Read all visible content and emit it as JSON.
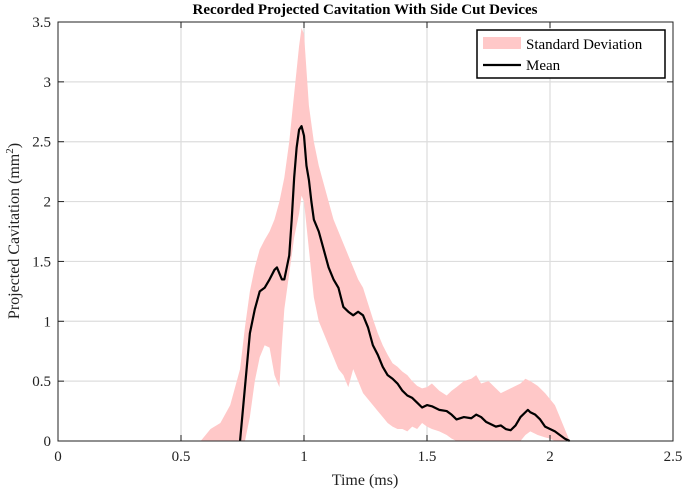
{
  "chart_data": {
    "type": "area",
    "title": "Recorded Projected Cavitation With Side Cut Devices",
    "xlabel": "Time (ms)",
    "ylabel_base": "Projected Cavitation (mm",
    "ylabel_sup": "2",
    "ylabel_end": ")",
    "xlim": [
      0,
      2.5
    ],
    "ylim": [
      0,
      3.5
    ],
    "xticks": [
      0,
      0.5,
      1,
      1.5,
      2,
      2.5
    ],
    "xtick_labels": [
      "0",
      "0.5",
      "1",
      "1.5",
      "2",
      "2.5"
    ],
    "yticks": [
      0,
      0.5,
      1,
      1.5,
      2,
      2.5,
      3,
      3.5
    ],
    "ytick_labels": [
      "0",
      "0.5",
      "1",
      "1.5",
      "2",
      "2.5",
      "3",
      "3.5"
    ],
    "grid": true,
    "legend_position": "top-right",
    "colors": {
      "band": "#ffc8c8",
      "mean": "#000000",
      "grid": "#dddddd",
      "axis": "#222222"
    },
    "series": [
      {
        "name": "Standard Deviation",
        "kind": "band",
        "x": [
          0.58,
          0.62,
          0.66,
          0.7,
          0.74,
          0.76,
          0.78,
          0.8,
          0.82,
          0.84,
          0.86,
          0.88,
          0.9,
          0.91,
          0.92,
          0.94,
          0.96,
          0.98,
          0.99,
          1.0,
          1.02,
          1.04,
          1.06,
          1.08,
          1.1,
          1.12,
          1.14,
          1.16,
          1.18,
          1.2,
          1.22,
          1.24,
          1.26,
          1.28,
          1.3,
          1.32,
          1.34,
          1.36,
          1.38,
          1.4,
          1.42,
          1.44,
          1.46,
          1.48,
          1.5,
          1.52,
          1.55,
          1.58,
          1.6,
          1.62,
          1.65,
          1.68,
          1.7,
          1.72,
          1.75,
          1.78,
          1.8,
          1.82,
          1.85,
          1.88,
          1.9,
          1.92,
          1.95,
          1.98,
          2.0,
          2.02,
          2.04,
          2.06,
          2.08
        ],
        "upper": [
          0.0,
          0.1,
          0.15,
          0.3,
          0.6,
          0.95,
          1.25,
          1.45,
          1.6,
          1.68,
          1.75,
          1.85,
          2.0,
          2.1,
          2.2,
          2.5,
          2.9,
          3.3,
          3.45,
          3.4,
          2.8,
          2.5,
          2.3,
          2.15,
          2.0,
          1.85,
          1.75,
          1.65,
          1.55,
          1.45,
          1.35,
          1.28,
          1.15,
          1.02,
          0.9,
          0.8,
          0.72,
          0.65,
          0.62,
          0.58,
          0.55,
          0.5,
          0.46,
          0.44,
          0.45,
          0.48,
          0.42,
          0.38,
          0.42,
          0.45,
          0.5,
          0.52,
          0.55,
          0.48,
          0.5,
          0.44,
          0.4,
          0.42,
          0.45,
          0.48,
          0.52,
          0.5,
          0.46,
          0.4,
          0.35,
          0.3,
          0.2,
          0.1,
          0.0
        ],
        "lower": [
          0.0,
          0.0,
          0.0,
          0.0,
          0.0,
          0.0,
          0.2,
          0.5,
          0.7,
          0.8,
          0.78,
          0.55,
          0.45,
          0.8,
          1.1,
          1.4,
          1.7,
          1.9,
          2.05,
          2.0,
          1.6,
          1.2,
          1.0,
          0.9,
          0.8,
          0.7,
          0.6,
          0.55,
          0.45,
          0.6,
          0.5,
          0.4,
          0.35,
          0.3,
          0.25,
          0.2,
          0.15,
          0.12,
          0.1,
          0.1,
          0.08,
          0.12,
          0.1,
          0.15,
          0.12,
          0.1,
          0.08,
          0.05,
          0.02,
          0.0,
          0.0,
          0.0,
          0.0,
          0.0,
          0.0,
          0.0,
          0.0,
          0.0,
          0.0,
          0.0,
          0.05,
          0.08,
          0.05,
          0.03,
          0.02,
          0.0,
          0.0,
          0.0,
          0.0
        ]
      },
      {
        "name": "Mean",
        "kind": "line",
        "x": [
          0.74,
          0.76,
          0.78,
          0.8,
          0.82,
          0.84,
          0.86,
          0.88,
          0.89,
          0.9,
          0.91,
          0.92,
          0.93,
          0.94,
          0.95,
          0.96,
          0.97,
          0.98,
          0.99,
          1.0,
          1.01,
          1.02,
          1.03,
          1.04,
          1.06,
          1.08,
          1.1,
          1.12,
          1.14,
          1.16,
          1.18,
          1.2,
          1.22,
          1.24,
          1.26,
          1.28,
          1.3,
          1.32,
          1.34,
          1.36,
          1.38,
          1.4,
          1.42,
          1.44,
          1.46,
          1.48,
          1.5,
          1.52,
          1.55,
          1.58,
          1.6,
          1.62,
          1.65,
          1.68,
          1.7,
          1.72,
          1.74,
          1.76,
          1.78,
          1.8,
          1.82,
          1.84,
          1.86,
          1.88,
          1.9,
          1.91,
          1.92,
          1.94,
          1.96,
          1.98,
          2.0,
          2.02,
          2.04,
          2.06,
          2.08
        ],
        "y": [
          0.0,
          0.45,
          0.9,
          1.1,
          1.25,
          1.28,
          1.35,
          1.43,
          1.45,
          1.4,
          1.35,
          1.35,
          1.45,
          1.55,
          1.85,
          2.2,
          2.45,
          2.6,
          2.63,
          2.55,
          2.3,
          2.18,
          2.0,
          1.85,
          1.75,
          1.6,
          1.45,
          1.35,
          1.28,
          1.12,
          1.08,
          1.05,
          1.08,
          1.05,
          0.95,
          0.8,
          0.72,
          0.62,
          0.55,
          0.52,
          0.48,
          0.42,
          0.38,
          0.36,
          0.32,
          0.28,
          0.3,
          0.29,
          0.26,
          0.25,
          0.22,
          0.18,
          0.2,
          0.19,
          0.22,
          0.2,
          0.16,
          0.14,
          0.12,
          0.13,
          0.1,
          0.09,
          0.13,
          0.2,
          0.24,
          0.26,
          0.24,
          0.22,
          0.18,
          0.12,
          0.1,
          0.08,
          0.05,
          0.02,
          0.0
        ]
      }
    ]
  }
}
